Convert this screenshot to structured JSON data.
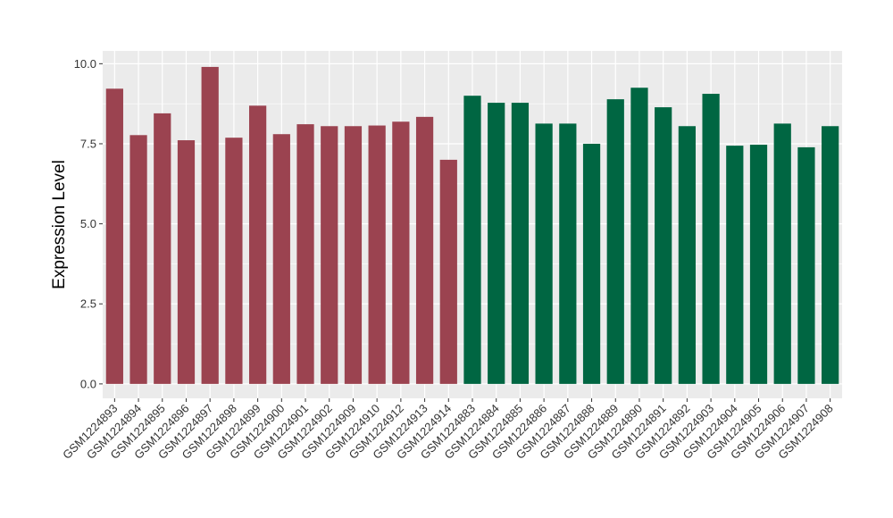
{
  "chart_data": {
    "type": "bar",
    "title": "",
    "xlabel": "",
    "ylabel": "Expression Level",
    "ylim": [
      -0.45,
      10.4
    ],
    "yticks": [
      0.0,
      2.5,
      5.0,
      7.5,
      10.0
    ],
    "ytick_labels": [
      "0.0",
      "2.5",
      "5.0",
      "7.5",
      "10.0"
    ],
    "grid": true,
    "legend": "none",
    "background_color": "#ebebeb",
    "grid_color": "#ffffff",
    "categories": [
      "GSM1224893",
      "GSM1224894",
      "GSM1224895",
      "GSM1224896",
      "GSM1224897",
      "GSM1224898",
      "GSM1224899",
      "GSM1224900",
      "GSM1224901",
      "GSM1224902",
      "GSM1224909",
      "GSM1224910",
      "GSM1224912",
      "GSM1224913",
      "GSM1224914",
      "GSM1224883",
      "GSM1224884",
      "GSM1224885",
      "GSM1224886",
      "GSM1224887",
      "GSM1224888",
      "GSM1224889",
      "GSM1224890",
      "GSM1224891",
      "GSM1224892",
      "GSM1224903",
      "GSM1224904",
      "GSM1224905",
      "GSM1224906",
      "GSM1224907",
      "GSM1224908"
    ],
    "values": [
      9.22,
      7.77,
      8.45,
      7.61,
      9.9,
      7.69,
      8.69,
      7.8,
      8.11,
      8.05,
      8.05,
      8.07,
      8.19,
      8.34,
      7.0,
      9.0,
      8.78,
      8.78,
      8.13,
      8.13,
      7.5,
      8.89,
      9.25,
      8.64,
      8.05,
      9.06,
      7.44,
      7.47,
      8.13,
      7.39,
      8.05
    ],
    "bar_colors": [
      "#9b4350",
      "#9b4350",
      "#9b4350",
      "#9b4350",
      "#9b4350",
      "#9b4350",
      "#9b4350",
      "#9b4350",
      "#9b4350",
      "#9b4350",
      "#9b4350",
      "#9b4350",
      "#9b4350",
      "#9b4350",
      "#9b4350",
      "#006642",
      "#006642",
      "#006642",
      "#006642",
      "#006642",
      "#006642",
      "#006642",
      "#006642",
      "#006642",
      "#006642",
      "#006642",
      "#006642",
      "#006642",
      "#006642",
      "#006642",
      "#006642"
    ]
  }
}
